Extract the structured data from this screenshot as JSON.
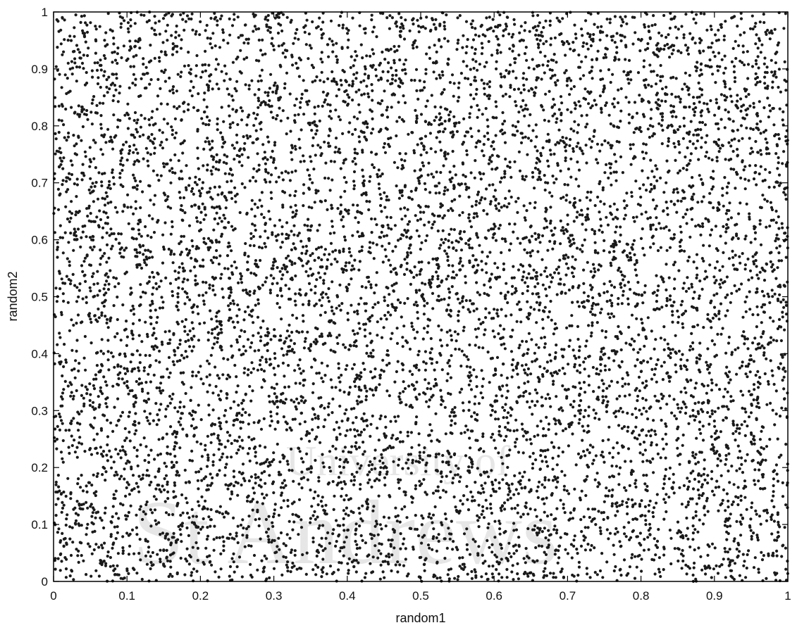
{
  "chart_data": {
    "type": "scatter",
    "xlabel": "random1",
    "ylabel": "random2",
    "xlim": [
      0,
      1
    ],
    "ylim": [
      0,
      1
    ],
    "x_ticks": [
      "0",
      "0.1",
      "0.2",
      "0.3",
      "0.4",
      "0.5",
      "0.6",
      "0.7",
      "0.8",
      "0.9",
      "1"
    ],
    "y_ticks": [
      "0",
      "0.1",
      "0.2",
      "0.3",
      "0.4",
      "0.5",
      "0.6",
      "0.7",
      "0.8",
      "0.9",
      "1"
    ],
    "grid": false,
    "legend": "none",
    "marker_color": "#1a1a1a",
    "series": [
      {
        "description_count": 9000,
        "x": [
          0.02,
          0.07,
          0.12,
          0.18,
          0.23,
          0.29,
          0.34,
          0.41,
          0.47,
          0.53,
          0.58,
          0.64,
          0.71,
          0.76,
          0.82,
          0.88,
          0.93,
          0.98
        ],
        "y": [
          0.91,
          0.12,
          0.55,
          0.33,
          0.78,
          0.04,
          0.66,
          0.42,
          0.87,
          0.21,
          0.59,
          0.95,
          0.08,
          0.47,
          0.73,
          0.28,
          0.61,
          0.15
        ]
      }
    ],
    "watermark": {
      "lines": [
        "University of",
        "St Andrews"
      ],
      "color": "#e6e6e6"
    }
  }
}
